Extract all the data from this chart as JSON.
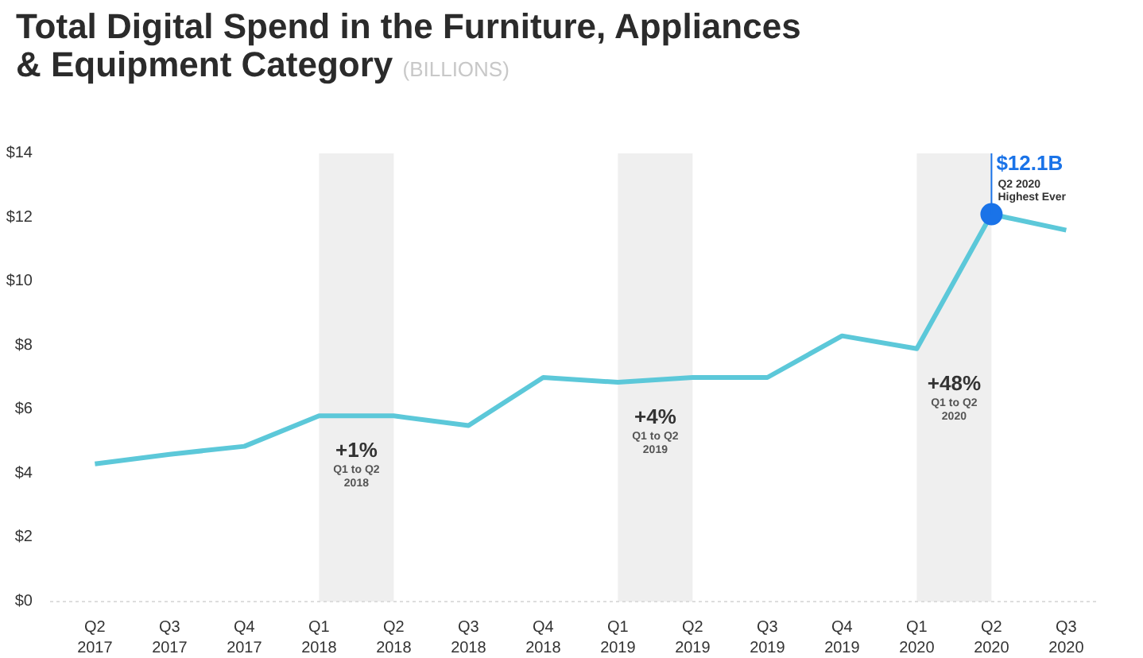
{
  "chart_data": {
    "type": "line",
    "title": "Total Digital Spend in the Furniture, Appliances\n& Equipment Category",
    "subtitle": "(BILLIONS)",
    "categories": [
      "Q2\n2017",
      "Q3\n2017",
      "Q4\n2017",
      "Q1\n2018",
      "Q2\n2018",
      "Q3\n2018",
      "Q4\n2018",
      "Q1\n2019",
      "Q2\n2019",
      "Q3\n2019",
      "Q4\n2019",
      "Q1\n2020",
      "Q2\n2020",
      "Q3\n2020"
    ],
    "series": [
      {
        "color": "#5cc8d9",
        "values": [
          4.3,
          4.6,
          4.85,
          5.8,
          5.8,
          5.5,
          7.0,
          6.85,
          7.0,
          7.0,
          8.3,
          7.9,
          12.1,
          11.6
        ]
      }
    ],
    "ylim": [
      0,
      14
    ],
    "yticks": [
      {
        "value": 0,
        "label": "$0"
      },
      {
        "value": 2,
        "label": "$2"
      },
      {
        "value": 4,
        "label": "$4"
      },
      {
        "value": 6,
        "label": "$6"
      },
      {
        "value": 8,
        "label": "$8"
      },
      {
        "value": 10,
        "label": "$10"
      },
      {
        "value": 12,
        "label": "$12"
      },
      {
        "value": 14,
        "label": "$14"
      }
    ],
    "bands": [
      {
        "axis": "x",
        "from": "Q1\n2018",
        "to": "Q2\n2018",
        "label": "+1%\nQ1 to Q2\n2018",
        "color": "#efefef"
      },
      {
        "axis": "x",
        "from": "Q1\n2019",
        "to": "Q2\n2019",
        "label": "+4%\nQ1 to Q2\n2019",
        "color": "#efefef"
      },
      {
        "axis": "x",
        "from": "Q1\n2020",
        "to": "Q2\n2020",
        "label": "+48%\nQ1 to Q2\n2020",
        "color": "#efefef"
      }
    ],
    "annotations": [
      {
        "text": "$12.1B",
        "x": "Q2\n2020",
        "y": 12.1
      },
      {
        "text": "Q2 2020\nHighest Ever",
        "x": "Q2\n2020",
        "y": 12.1
      }
    ],
    "grid": false,
    "marker": "none",
    "line_style": "solid"
  }
}
